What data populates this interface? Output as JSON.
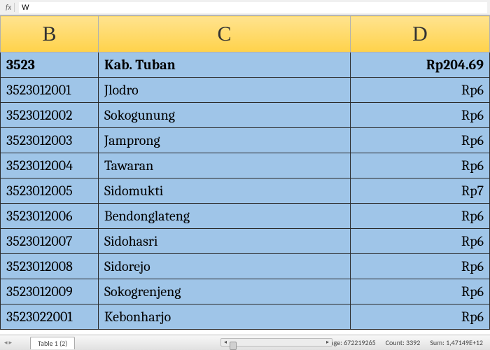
{
  "formula_bar": {
    "fx_label": "fx",
    "value": "W"
  },
  "columns": {
    "b": "B",
    "c": "C",
    "d": "D"
  },
  "header_row": {
    "b": "3523",
    "c": "Kab.  Tuban",
    "d": "Rp204.69"
  },
  "rows": [
    {
      "b": "3523012001",
      "c": "Jlodro",
      "d": "Rp6"
    },
    {
      "b": "3523012002",
      "c": "Sokogunung",
      "d": "Rp6"
    },
    {
      "b": "3523012003",
      "c": "Jamprong",
      "d": "Rp6"
    },
    {
      "b": "3523012004",
      "c": "Tawaran",
      "d": "Rp6"
    },
    {
      "b": "3523012005",
      "c": "Sidomukti",
      "d": "Rp7"
    },
    {
      "b": "3523012006",
      "c": "Bendonglateng",
      "d": "Rp6"
    },
    {
      "b": "3523012007",
      "c": "Sidohasri",
      "d": "Rp6"
    },
    {
      "b": "3523012008",
      "c": "Sidorejo",
      "d": "Rp6"
    },
    {
      "b": "3523012009",
      "c": "Sokogrenjeng",
      "d": "Rp6"
    },
    {
      "b": "3523022001",
      "c": "Kebonharjo",
      "d": "Rp6"
    }
  ],
  "status": {
    "sheet_name": "Table 1 (2)",
    "average_label": "Average:",
    "average_value": "672219265",
    "count_label": "Count:",
    "count_value": "3392",
    "sum_label": "Sum:",
    "sum_value": "1,47149E+12"
  }
}
